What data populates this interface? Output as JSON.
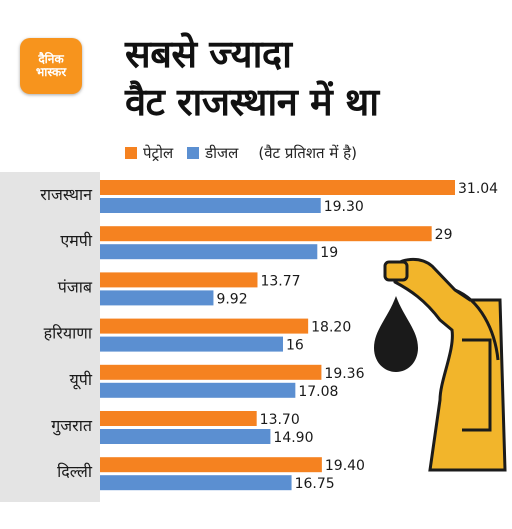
{
  "brand": {
    "line1": "दैनिक",
    "line2": "भास्कर"
  },
  "colors": {
    "petrol": "#f58220",
    "diesel": "#5b8fd1",
    "panel": "#e4e4e4"
  },
  "chart_data": {
    "type": "bar",
    "orientation": "horizontal",
    "title": [
      "सबसे ज्यादा",
      "वैट राजस्थान में था"
    ],
    "legend_note": "(वैट प्रतिशत में है)",
    "categories": [
      "राजस्थान",
      "एमपी",
      "पंजाब",
      "हरियाणा",
      "यूपी",
      "गुजरात",
      "दिल्ली"
    ],
    "series": [
      {
        "name": "पेट्रोल",
        "values": [
          31.04,
          29,
          13.77,
          18.2,
          19.36,
          13.7,
          19.4
        ],
        "labels": [
          "31.04",
          "29",
          "13.77",
          "18.20",
          "19.36",
          "13.70",
          "19.40"
        ]
      },
      {
        "name": "डीजल",
        "values": [
          19.3,
          19,
          9.92,
          16,
          17.08,
          14.9,
          16.75
        ],
        "labels": [
          "19.30",
          "19",
          "9.92",
          "16",
          "17.08",
          "14.90",
          "16.75"
        ]
      }
    ],
    "xlim": [
      0,
      31.04
    ],
    "grid": false,
    "legend_position": "top"
  }
}
